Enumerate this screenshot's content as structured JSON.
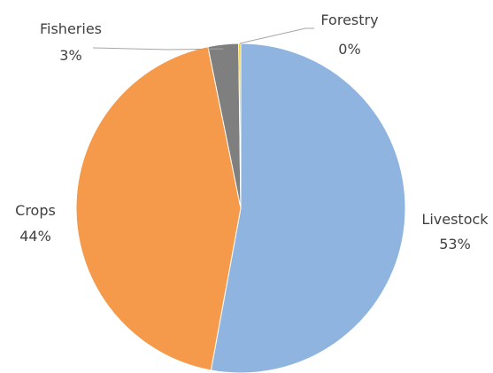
{
  "chart_data": {
    "type": "pie",
    "title": "",
    "slices": [
      {
        "name": "Livestock",
        "value": 53,
        "label": "53%",
        "color": "#8EB4DF"
      },
      {
        "name": "Crops",
        "value": 44,
        "label": "44%",
        "color": "#F59A4A"
      },
      {
        "name": "Fisheries",
        "value": 3,
        "label": "3%",
        "color": "#7F7F7F"
      },
      {
        "name": "Forestry",
        "value": 0.2,
        "label": "0%",
        "color": "#F2C500"
      }
    ],
    "start_angle_deg": 0,
    "direction": "clockwise",
    "legend": "none",
    "leader_line_color": "#A6A6A6"
  }
}
